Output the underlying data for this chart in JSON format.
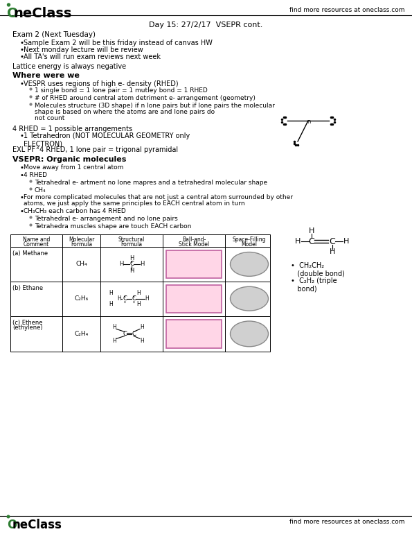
{
  "bg_color": "#ffffff",
  "header_logo_text": "OneClass",
  "header_right_text": "find more resources at oneclass.com",
  "footer_logo_text": "OneClass",
  "footer_right_text": "find more resources at oneclass.com",
  "title_line": "Day 15: 27/2/17  VSEPR cont.",
  "section1_header": "Exam 2 (Next Tuesday)",
  "section1_bullets": [
    "Sample Exam 2 will be this friday instead of canvas HW",
    "Next monday lecture will be review",
    "All TA's will run exam reviews next week"
  ],
  "section2_line": "Lattice energy is always negative",
  "section3_header": "Where were we",
  "section3_bullets": [
    "VESPR uses regions of high e- density (RHED)",
    "1 single bond = 1 lone pair = 1 mutley bond = 1 RHED",
    "# of RHED around central atom detriment e- arrangement (geometry)",
    "Molecules structure (3D shape) if n lone pairs but if lone pairs the molecular\nshape is based on where the atoms are and lone pairs do\nnot count"
  ],
  "section3_line1": "4 RHED = 1 possible arrangements",
  "section3_sub_bullet": "1 Tetrahedron (NOT MOLECULAR GEOMETRY only\nELECTRON)",
  "section3_line2": "EXL PF₃ 4 RHED, 1 lone pair = trigonal pyramidal",
  "section4_header": "VSEPR: Organic molecules",
  "section4_bullets": [
    "Move away from 1 central atom",
    "4 RHED",
    "Tetrahedral e- artment no lone mapres and a tetrahedral molecular shape",
    "CH₄",
    "For more complicated molecules that are not just a central atom surrounded by other\natoms, we just apply the same principles to EACH central atom in turn",
    "CH₃CH₃ each carbon has 4 RHED",
    "Tetrahedral e- arrangement and no lone pairs",
    "Tetrahedra muscles shape are touch EACH carbon"
  ],
  "section5_notes": [
    "•  CH₂CH₂\n   (double bond)",
    "•  C₂H₂ (triple\n   bond)"
  ],
  "table_headers": [
    "Name and\nComment",
    "Molecular\nFormula",
    "Structural\nFormula",
    "Ball-and-\nStick Model",
    "Space-Filling\nModel"
  ],
  "table_rows": [
    [
      "(a) Methane",
      "CH₄",
      "structural_methane",
      "ball_methane",
      "fill_methane"
    ],
    [
      "(b) Ethane",
      "C₂H₆",
      "structural_ethane",
      "ball_ethane",
      "fill_ethane"
    ],
    [
      "(c) Ethene\n(ethylene)",
      "C₂H₄",
      "structural_ethene",
      "ball_ethene",
      "fill_ethene"
    ]
  ],
  "green_color": "#2e7d32",
  "logo_green": "#4caf50",
  "text_color": "#000000",
  "header_bg": "#ffffff",
  "border_color": "#000000"
}
